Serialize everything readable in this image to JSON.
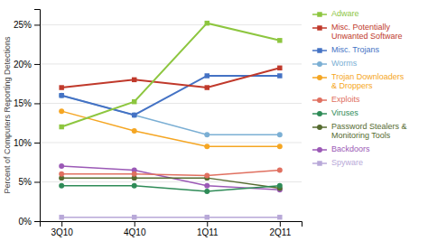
{
  "chart_data": {
    "type": "line",
    "ylabel": "Percent of Computers Reporting Detections",
    "categories": [
      "3Q10",
      "4Q10",
      "1Q11",
      "2Q11"
    ],
    "series": [
      {
        "name": "Adware",
        "color": "#8dc63f",
        "marker": "square",
        "values": [
          12.0,
          15.2,
          25.2,
          23.0
        ]
      },
      {
        "name": "Misc. Potentially\nUnwanted Software",
        "color": "#c0392b",
        "marker": "square",
        "values": [
          17.0,
          18.0,
          17.0,
          19.5
        ]
      },
      {
        "name": "Misc. Trojans",
        "color": "#4472c4",
        "marker": "square",
        "values": [
          16.0,
          13.5,
          18.5,
          18.5
        ]
      },
      {
        "name": "Worms",
        "color": "#7bafd4",
        "marker": "circle",
        "values": [
          16.0,
          13.5,
          11.0,
          11.0
        ]
      },
      {
        "name": "Trojan Downloaders\n& Droppers",
        "color": "#f5a623",
        "marker": "circle",
        "values": [
          14.0,
          11.5,
          9.5,
          9.5
        ]
      },
      {
        "name": "Exploits",
        "color": "#e07060",
        "marker": "circle",
        "values": [
          6.0,
          6.0,
          5.8,
          6.5
        ]
      },
      {
        "name": "Viruses",
        "color": "#2e8b57",
        "marker": "circle",
        "values": [
          4.5,
          4.5,
          3.8,
          4.5
        ]
      },
      {
        "name": "Password Stealers &\nMonitoring Tools",
        "color": "#556b2f",
        "marker": "circle",
        "values": [
          5.5,
          5.5,
          5.5,
          4.2
        ]
      },
      {
        "name": "Backdoors",
        "color": "#9b59b6",
        "marker": "circle",
        "values": [
          7.0,
          6.5,
          4.5,
          4.0
        ]
      },
      {
        "name": "Spyware",
        "color": "#b8a8d8",
        "marker": "square",
        "values": [
          0.5,
          0.5,
          0.5,
          0.5
        ]
      }
    ],
    "ylim": [
      0,
      27
    ],
    "yticks": [
      {
        "value": 0,
        "label": "0%"
      },
      {
        "value": 5,
        "label": "5%"
      },
      {
        "value": 10,
        "label": "10%"
      },
      {
        "value": 15,
        "label": "15%"
      },
      {
        "value": 20,
        "label": "20%"
      },
      {
        "value": 25,
        "label": "25%"
      }
    ],
    "grid": true,
    "legend": "right"
  }
}
